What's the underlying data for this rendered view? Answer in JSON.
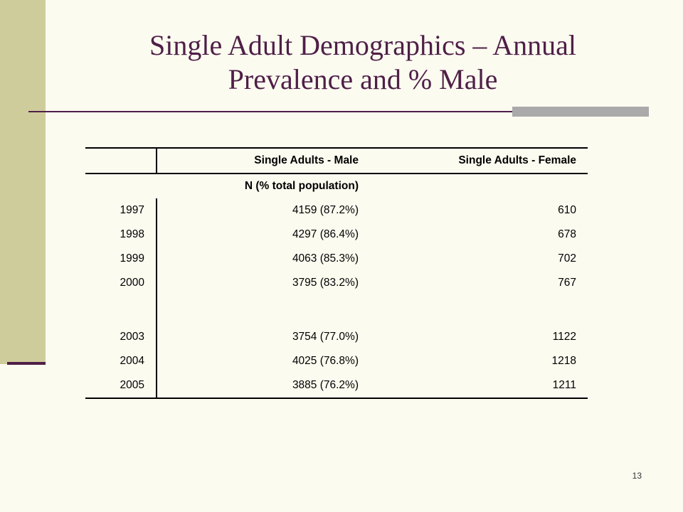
{
  "slide": {
    "title_line1": "Single Adult Demographics – Annual",
    "title_line2": "Prevalence and % Male",
    "page_number": "13"
  },
  "table": {
    "header": [
      "",
      "Single Adults - Male",
      "Single Adults - Female"
    ],
    "subheader": "N (% total population)",
    "rows": [
      {
        "year": "1997",
        "male": "4159 (87.2%)",
        "female": "610"
      },
      {
        "year": "1998",
        "male": "4297 (86.4%)",
        "female": "678"
      },
      {
        "year": "1999",
        "male": "4063 (85.3%)",
        "female": "702"
      },
      {
        "year": "2000",
        "male": "3795 (83.2%)",
        "female": "767"
      },
      {
        "year": "",
        "male": "",
        "female": ""
      },
      {
        "year": "2003",
        "male": "3754 (77.0%)",
        "female": "1122"
      },
      {
        "year": "2004",
        "male": "4025 (76.8%)",
        "female": "1218"
      },
      {
        "year": "2005",
        "male": "3885 (76.2%)",
        "female": "1211"
      }
    ]
  },
  "colors": {
    "title": "#4f1f47",
    "side_band": "#cfcc9c",
    "background": "#fbfbf0",
    "accent_bar": "#aaaaaa"
  }
}
